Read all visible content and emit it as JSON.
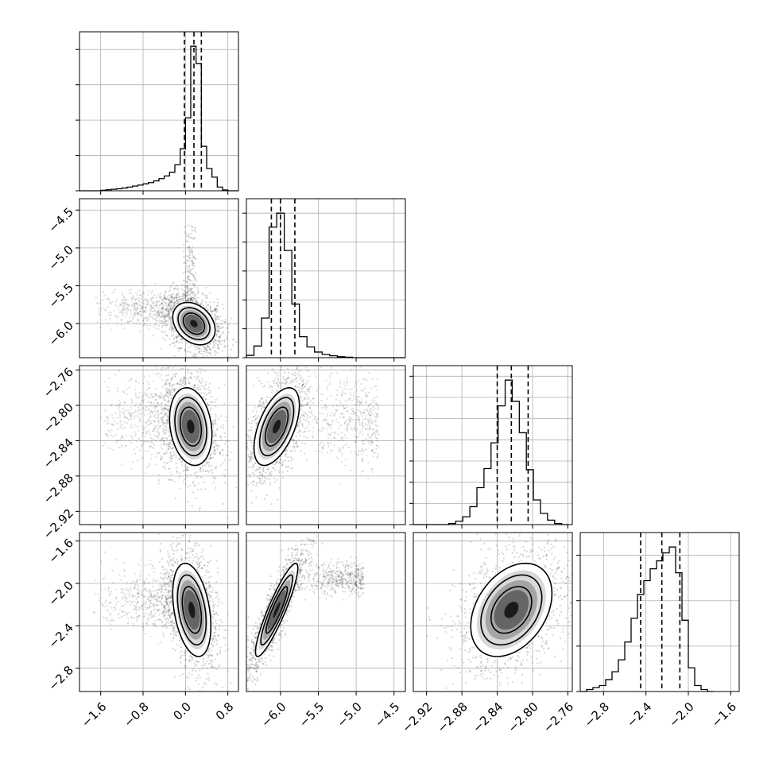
{
  "chart_data": {
    "type": "corner",
    "title": "",
    "parameters": [
      {
        "index": 0,
        "range": [
          -2.0,
          1.0
        ],
        "ticks": [
          -1.6,
          -0.8,
          0.0,
          0.8
        ],
        "tick_labels": [
          "−1.6",
          "−0.8",
          "0.0",
          "0.8"
        ],
        "median": 0.16,
        "quantiles": [
          -0.02,
          0.16,
          0.3
        ],
        "hist_y_ticks_count": 4,
        "histogram": {
          "edges": [
            -2.0,
            -1.9,
            -1.8,
            -1.7,
            -1.6,
            -1.5,
            -1.4,
            -1.3,
            -1.2,
            -1.1,
            -1.0,
            -0.9,
            -0.8,
            -0.7,
            -0.6,
            -0.5,
            -0.4,
            -0.3,
            -0.2,
            -0.1,
            0.0,
            0.1,
            0.2,
            0.3,
            0.4,
            0.5,
            0.6,
            0.7,
            0.8,
            0.9,
            1.0
          ],
          "counts": [
            0,
            0,
            0,
            0,
            0.2,
            0.4,
            0.6,
            0.8,
            1.1,
            1.5,
            1.9,
            2.3,
            2.8,
            3.3,
            4.0,
            4.9,
            6.0,
            7.5,
            10.5,
            17.0,
            29.5,
            58.5,
            51.5,
            18.0,
            9.0,
            5.5,
            1.5,
            0.3,
            0,
            0
          ]
        }
      },
      {
        "index": 1,
        "range": [
          -6.45,
          -4.35
        ],
        "ticks": [
          -6.0,
          -5.5,
          -5.0,
          -4.5
        ],
        "tick_labels": [
          "−6.0",
          "−5.5",
          "−5.0",
          "−4.5"
        ],
        "median": -6.0,
        "quantiles": [
          -6.12,
          -6.0,
          -5.81
        ],
        "hist_y_ticks_count": 5,
        "histogram": {
          "edges": [
            -6.45,
            -6.35,
            -6.25,
            -6.15,
            -6.05,
            -5.95,
            -5.85,
            -5.75,
            -5.65,
            -5.55,
            -5.45,
            -5.35,
            -5.25,
            -5.15,
            -5.05,
            -4.95,
            -4.85,
            -4.75,
            -4.65,
            -4.55,
            -4.45,
            -4.35
          ],
          "counts": [
            0.5,
            2.5,
            8.5,
            28.0,
            31.0,
            23.0,
            11.5,
            4.5,
            2.3,
            1.2,
            0.7,
            0.4,
            0.2,
            0.1,
            0,
            0,
            0,
            0,
            0,
            0,
            0
          ]
        }
      },
      {
        "index": 2,
        "range": [
          -2.935,
          -2.755
        ],
        "ticks": [
          -2.92,
          -2.88,
          -2.84,
          -2.8,
          -2.76
        ],
        "tick_labels": [
          "−2.92",
          "−2.88",
          "−2.84",
          "−2.80",
          "−2.76"
        ],
        "median": -2.824,
        "quantiles": [
          -2.84,
          -2.824,
          -2.805
        ],
        "hist_y_ticks_count": 7,
        "histogram": {
          "edges": [
            -2.935,
            -2.927,
            -2.919,
            -2.911,
            -2.903,
            -2.895,
            -2.887,
            -2.879,
            -2.871,
            -2.863,
            -2.855,
            -2.847,
            -2.839,
            -2.831,
            -2.823,
            -2.815,
            -2.807,
            -2.799,
            -2.791,
            -2.783,
            -2.775,
            -2.767,
            -2.759
          ],
          "counts": [
            0,
            0,
            0,
            0,
            0,
            0.5,
            1.5,
            3.5,
            8.0,
            16.5,
            25.0,
            36.5,
            53.0,
            64.5,
            55.0,
            41.0,
            24.5,
            11.0,
            5.0,
            2.0,
            0.5,
            0
          ]
        }
      },
      {
        "index": 3,
        "range": [
          -3.02,
          -1.52
        ],
        "ticks": [
          -2.8,
          -2.4,
          -2.0,
          -1.6
        ],
        "tick_labels": [
          "−2.8",
          "−2.4",
          "−2.0",
          "−1.6"
        ],
        "median": -2.25,
        "quantiles": [
          -2.45,
          -2.25,
          -2.08
        ],
        "hist_y_ticks_count": 3,
        "histogram": {
          "edges": [
            -3.02,
            -2.96,
            -2.9,
            -2.84,
            -2.78,
            -2.72,
            -2.66,
            -2.6,
            -2.54,
            -2.48,
            -2.42,
            -2.36,
            -2.3,
            -2.24,
            -2.18,
            -2.12,
            -2.06,
            -2.0,
            -1.94,
            -1.88,
            -1.82,
            -1.76
          ],
          "counts": [
            0,
            0.5,
            1.0,
            1.5,
            3.0,
            5.0,
            8.0,
            12.5,
            18.5,
            24.5,
            28.0,
            31.0,
            33.0,
            35.0,
            36.5,
            30.0,
            18.0,
            6.0,
            1.5,
            0.5,
            0
          ]
        }
      }
    ],
    "pair_panels": [
      {
        "x_param": 0,
        "y_param": 1,
        "center": [
          0.16,
          -6.0
        ],
        "sigma": [
          0.2,
          0.14
        ],
        "corr": -0.3,
        "tail": {
          "x_range": [
            -1.8,
            -0.1
          ],
          "y": -5.8,
          "y_spread": 0.12
        },
        "streak": {
          "x": 0.08,
          "y_range": [
            -5.8,
            -4.7
          ]
        }
      },
      {
        "x_param": 0,
        "y_param": 2,
        "center": [
          0.1,
          -2.824
        ],
        "sigma": [
          0.2,
          0.022
        ],
        "corr": -0.2,
        "tail": {
          "x_range": [
            -1.7,
            -0.2
          ],
          "y": -2.815,
          "y_spread": 0.025
        }
      },
      {
        "x_param": 1,
        "y_param": 2,
        "center": [
          -6.05,
          -2.824
        ],
        "sigma": [
          0.15,
          0.022
        ],
        "corr": 0.55,
        "tail": {
          "x_range": [
            -5.9,
            -4.7
          ],
          "y": -2.815,
          "y_spread": 0.025
        }
      },
      {
        "x_param": 0,
        "y_param": 3,
        "center": [
          0.12,
          -2.25
        ],
        "sigma": [
          0.18,
          0.22
        ],
        "corr": -0.35,
        "tail": {
          "x_range": [
            -1.8,
            -0.2
          ],
          "y": -2.15,
          "y_spread": 0.15
        }
      },
      {
        "x_param": 1,
        "y_param": 3,
        "center": [
          -6.05,
          -2.25
        ],
        "sigma": [
          0.14,
          0.22
        ],
        "corr": 0.9,
        "tail": {
          "x_range": [
            -5.9,
            -4.9
          ],
          "y": -1.95,
          "y_spread": 0.08
        }
      },
      {
        "x_param": 2,
        "y_param": 3,
        "center": [
          -2.824,
          -2.25
        ],
        "sigma": [
          0.023,
          0.22
        ],
        "corr": 0.35
      }
    ],
    "contour_levels_sigma": [
      1.0,
      1.5,
      2.0
    ],
    "grid": true,
    "legend": "none"
  }
}
